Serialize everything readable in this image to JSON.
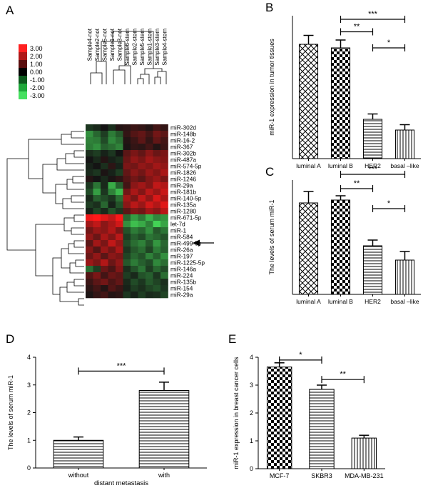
{
  "panels": {
    "A": "A",
    "B": "B",
    "C": "C",
    "D": "D",
    "E": "E"
  },
  "heatmap": {
    "legend": [
      {
        "label": "3.00",
        "color": "#ff2020"
      },
      {
        "label": "2.00",
        "color": "#b01818"
      },
      {
        "label": "1.00",
        "color": "#5a0d0d"
      },
      {
        "label": "0.00",
        "color": "#000000"
      },
      {
        "label": "-1.00",
        "color": "#0d5a1e"
      },
      {
        "label": "-2.00",
        "color": "#1fa83a"
      },
      {
        "label": "-3.00",
        "color": "#46e060"
      }
    ],
    "samples": [
      "Sample4-not",
      "Sample2-not",
      "Sample5-not",
      "Sample1-not",
      "Sample3-not",
      "Sample6-stem",
      "Sample2-stem",
      "Sample5-stem",
      "Sample1-stem",
      "Sample3-stem",
      "Sample4-stem"
    ],
    "genes": [
      "miR-302d",
      "miR-148b",
      "miR-16-2",
      "miR-367",
      "miR-302b",
      "miR-487a",
      "miR-574-5p",
      "miR-1826",
      "miR-1246",
      "miR-29a",
      "miR-181b",
      "miR-140-5p",
      "miR-135a",
      "miR-1280",
      "miR-671-5p",
      "let-7d",
      "miR-1",
      "miR-584",
      "miR-499-5p",
      "miR-26a",
      "miR-197",
      "miR-1225-5p",
      "miR-146a",
      "miR-224",
      "miR-135b",
      "miR-154",
      "miR-29a"
    ],
    "highlight": "miR-1",
    "matrix": [
      [
        -0.5,
        -0.3,
        0,
        -0.4,
        0.2,
        0.3,
        0.5,
        0.4,
        0.2,
        0.6,
        0.4
      ],
      [
        -1.8,
        -1.2,
        -0.6,
        -1.5,
        -1,
        0.4,
        0.8,
        1,
        0.6,
        1.2,
        0.9
      ],
      [
        -1.6,
        -1.5,
        -0.8,
        -1.7,
        -1.3,
        0.2,
        0.5,
        0.9,
        0.4,
        1,
        0.6
      ],
      [
        -1.5,
        -1.8,
        -1.1,
        -1.3,
        -1.6,
        0.1,
        0.4,
        0.3,
        0.6,
        0.2,
        0.5
      ],
      [
        -0.4,
        -0.6,
        -0.2,
        -0.5,
        0,
        0.9,
        1.3,
        1,
        1.5,
        1.1,
        1.3
      ],
      [
        0,
        -0.3,
        0.2,
        -0.2,
        -0.4,
        1.1,
        1.6,
        1.3,
        1.8,
        1.5,
        1.4
      ],
      [
        -0.2,
        0,
        -0.4,
        0.3,
        -0.2,
        1.3,
        1.2,
        1.6,
        1.4,
        1.8,
        1.6
      ],
      [
        -0.3,
        -0.5,
        0.1,
        -0.2,
        -0.6,
        1,
        1.5,
        1.2,
        1.7,
        1.4,
        1.9
      ],
      [
        0.2,
        0,
        -0.3,
        0.1,
        0.3,
        0.8,
        1.2,
        0.9,
        1.4,
        1.7,
        1.3
      ],
      [
        -0.5,
        -1.4,
        -0.3,
        -2.2,
        -1.1,
        0.6,
        1.5,
        1.8,
        1.4,
        2.2,
        2
      ],
      [
        -0.8,
        -2,
        -0.5,
        -1.6,
        -2.4,
        1.2,
        1.9,
        1.4,
        2.1,
        1.7,
        2.3
      ],
      [
        -0.3,
        -1.1,
        -0.8,
        -0.5,
        -1.3,
        1.8,
        1.3,
        2.2,
        1.6,
        2.5,
        1.9
      ],
      [
        -0.6,
        -0.4,
        -1.2,
        -0.2,
        -0.9,
        1.5,
        2.1,
        1.7,
        2.4,
        2,
        2.6
      ],
      [
        -0.2,
        -0.7,
        -0.3,
        -0.9,
        -0.5,
        0.9,
        1.4,
        1.2,
        1.8,
        1.5,
        2.1
      ],
      [
        2.8,
        3,
        2.6,
        2.2,
        2.9,
        -1.2,
        -2,
        -1.5,
        -2.3,
        -1.7,
        -1.9
      ],
      [
        1.8,
        2.2,
        1.5,
        1.9,
        2.4,
        -1.8,
        -2.5,
        -2.2,
        -1.6,
        -2.8,
        -2.1
      ],
      [
        1.2,
        1.7,
        1.5,
        2,
        1.3,
        -0.9,
        -1.5,
        -1.2,
        -1.8,
        -1,
        -1.4
      ],
      [
        1.6,
        1.1,
        1.9,
        1.4,
        2.1,
        -0.6,
        -1.1,
        -0.8,
        -1.4,
        -1.2,
        -0.9
      ],
      [
        0.9,
        1.8,
        1.3,
        2.2,
        1.6,
        -0.8,
        -1.3,
        -1.6,
        -1,
        -1.9,
        -1.2
      ],
      [
        1.4,
        0.8,
        1.7,
        1.2,
        1.9,
        -0.5,
        -1,
        -1.3,
        -0.7,
        -1.5,
        -1.1
      ],
      [
        1.1,
        1.6,
        0.9,
        1.5,
        1.3,
        -0.7,
        -1.2,
        -0.9,
        -1.6,
        -1.1,
        -1.8
      ],
      [
        1.7,
        1.3,
        2,
        1.1,
        1.6,
        -1,
        -1.5,
        -1.1,
        -0.8,
        -1.7,
        -1.3
      ],
      [
        -1.3,
        -0.6,
        1.1,
        0.7,
        1.4,
        -0.4,
        -0.9,
        -1.4,
        -0.6,
        -1.2,
        -0.8
      ],
      [
        0.8,
        1.3,
        0.6,
        1.1,
        0.9,
        -0.6,
        -0.3,
        -0.9,
        -1.1,
        -0.5,
        -1.3
      ],
      [
        0.5,
        0.9,
        1.2,
        0.7,
        1,
        -0.3,
        -0.8,
        -0.5,
        -1,
        -0.7,
        -0.4
      ],
      [
        0.3,
        0.6,
        0.2,
        0.8,
        0.5,
        -0.2,
        -0.6,
        -0.4,
        -0.7,
        -0.9,
        -0.5
      ],
      [
        0.1,
        0.4,
        0.6,
        0.2,
        0.3,
        -0.5,
        -0.2,
        -0.6,
        -0.3,
        -0.4,
        -0.7
      ]
    ]
  },
  "chart_data": [
    {
      "panel": "B",
      "type": "bar",
      "ylabel": "miR-1 expression in tumor tissues",
      "ylim": [
        0,
        4
      ],
      "categories": [
        "luminal A",
        "luminal B",
        "HER2",
        "basal –like"
      ],
      "values": [
        3.2,
        3.1,
        1.1,
        0.8
      ],
      "errors": [
        0.25,
        0.22,
        0.15,
        0.15
      ],
      "patterns": [
        "diamond",
        "checker",
        "hlines",
        "vlines"
      ],
      "brackets": [
        {
          "from": 1,
          "to": 3,
          "label": "***",
          "level": 3.9
        },
        {
          "from": 1,
          "to": 2,
          "label": "**",
          "level": 3.55
        },
        {
          "from": 2,
          "to": 3,
          "label": "*",
          "level": 3.1
        }
      ]
    },
    {
      "panel": "C",
      "type": "bar",
      "ylabel": "The levels of serum miR-1",
      "ylim": [
        0,
        4
      ],
      "categories": [
        "luminal A",
        "luminal B",
        "HER2",
        "basal –like"
      ],
      "values": [
        3.2,
        3.3,
        1.7,
        1.2
      ],
      "errors": [
        0.4,
        0.15,
        0.2,
        0.3
      ],
      "patterns": [
        "diamond",
        "checker",
        "hlines",
        "vlines"
      ],
      "brackets": [
        {
          "from": 1,
          "to": 3,
          "label": "***",
          "level": 4.2
        },
        {
          "from": 1,
          "to": 2,
          "label": "**",
          "level": 3.7
        },
        {
          "from": 2,
          "to": 3,
          "label": "*",
          "level": 3.0
        }
      ]
    },
    {
      "panel": "D",
      "type": "bar",
      "ylabel": "The levels of serum miR-1",
      "xlabel": "distant metastasis",
      "ylim": [
        0,
        4
      ],
      "yticks": [
        0,
        1,
        2,
        3,
        4
      ],
      "categories": [
        "without",
        "with"
      ],
      "values": [
        1.0,
        2.8
      ],
      "errors": [
        0.12,
        0.3
      ],
      "patterns": [
        "hlines",
        "hlines"
      ],
      "brackets": [
        {
          "from": 0,
          "to": 1,
          "label": "***",
          "level": 3.5
        }
      ]
    },
    {
      "panel": "E",
      "type": "bar",
      "ylabel": "miR-1 expression in breast cancer cells",
      "ylim": [
        0,
        4
      ],
      "yticks": [
        0,
        1,
        2,
        3,
        4
      ],
      "categories": [
        "MCF-7",
        "SKBR3",
        "MDA-MB-231"
      ],
      "values": [
        3.65,
        2.85,
        1.1
      ],
      "errors": [
        0.15,
        0.15,
        0.1
      ],
      "patterns": [
        "checker",
        "hlines",
        "vlines"
      ],
      "brackets": [
        {
          "from": 0,
          "to": 1,
          "label": "*",
          "level": 3.9
        },
        {
          "from": 1,
          "to": 2,
          "label": "**",
          "level": 3.2
        }
      ]
    }
  ]
}
